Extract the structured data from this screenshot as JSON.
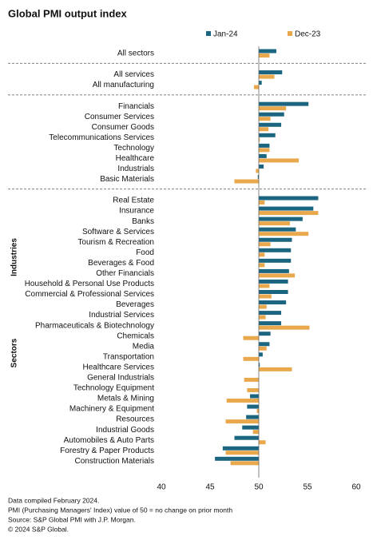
{
  "chart_data": {
    "type": "barh",
    "title": "Global PMI output index",
    "categories": [
      "All sectors",
      "All services",
      "All manufacturing",
      "Financials",
      "Consumer Services",
      "Consumer Goods",
      "Telecommunications Services",
      "Technology",
      "Healthcare",
      "Industrials",
      "Basic Materials",
      "Real Estate",
      "Insurance",
      "Banks",
      "Software & Services",
      "Tourism & Recreation",
      "Food",
      "Beverages & Food",
      "Other Financials",
      "Household & Personal Use Products",
      "Commercial & Professional Services",
      "Beverages",
      "Industrial Services",
      "Pharmaceuticals & Biotechnology",
      "Chemicals",
      "Media",
      "Transportation",
      "Healthcare Services",
      "General Industrials",
      "Technology Equipment",
      "Metals & Mining",
      "Machinery & Equipment",
      "Resources",
      "Industrial Goods",
      "Automobiles & Auto Parts",
      "Forestry & Paper Products",
      "Construction Materials"
    ],
    "series": [
      {
        "name": "Jan-24",
        "color": "#1b6580",
        "values": [
          51.8,
          52.4,
          50.3,
          55.1,
          52.6,
          52.3,
          51.7,
          51.1,
          50.8,
          50.5,
          49.9,
          56.1,
          55.6,
          54.5,
          53.8,
          53.4,
          53.3,
          53.3,
          53.1,
          53.0,
          53.0,
          52.8,
          52.3,
          52.3,
          51.2,
          51.1,
          50.4,
          50.1,
          50.0,
          50.0,
          49.1,
          48.8,
          48.7,
          48.3,
          47.5,
          46.3,
          45.5
        ]
      },
      {
        "name": "Dec-23",
        "color": "#e9a84c",
        "values": [
          51.1,
          51.6,
          49.5,
          52.8,
          51.2,
          51.0,
          50.1,
          51.1,
          54.1,
          49.7,
          47.5,
          50.6,
          56.1,
          53.2,
          55.1,
          51.2,
          50.6,
          50.6,
          53.7,
          51.1,
          51.3,
          50.8,
          50.7,
          55.2,
          48.4,
          50.8,
          48.4,
          53.4,
          48.5,
          48.8,
          46.7,
          49.8,
          46.6,
          49.4,
          50.7,
          46.6,
          47.1
        ]
      }
    ],
    "group_labels": [
      "Industries",
      "Sectors"
    ],
    "xlim": [
      40,
      60
    ],
    "xticks": [
      40,
      45,
      50,
      55,
      60
    ],
    "baseline": 50,
    "notes": [
      "Data compiled February 2024.",
      "PMI (Purchasing Managers' Index) value of 50 = no change on prior month",
      "Source: S&P Global PMI with J.P. Morgan.",
      "© 2024 S&P Global."
    ]
  }
}
